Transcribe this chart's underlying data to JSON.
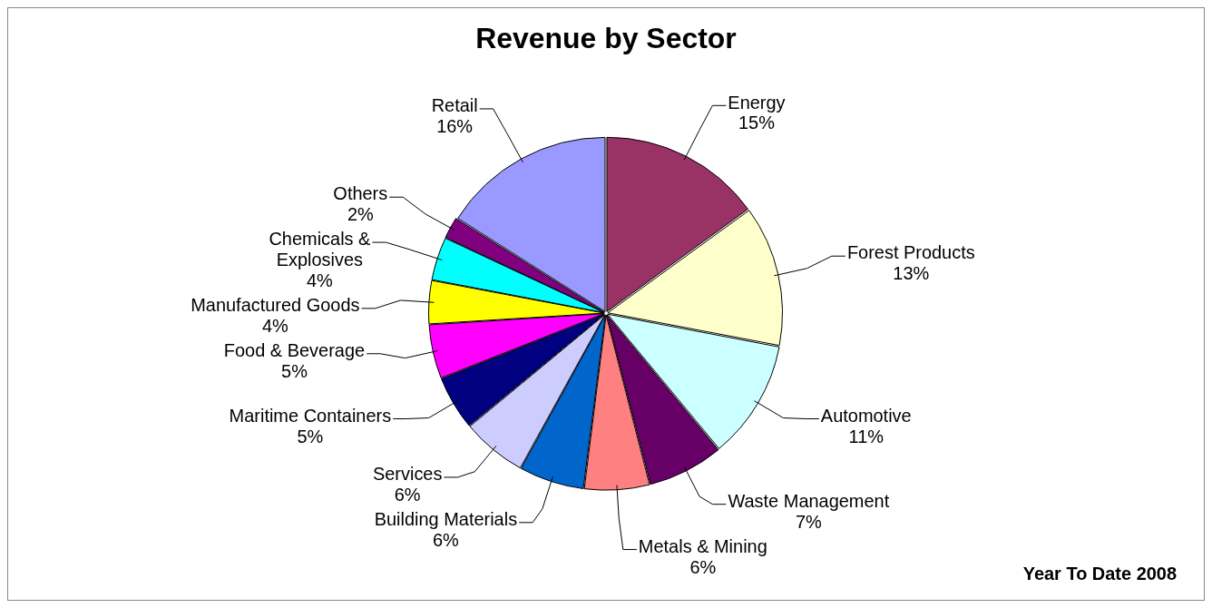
{
  "chart_data": {
    "type": "pie",
    "title": "Revenue by Sector",
    "categories": [
      "Energy",
      "Forest Products",
      "Automotive",
      "Waste Management",
      "Metals & Mining",
      "Building Materials",
      "Services",
      "Maritime Containers",
      "Food & Beverage",
      "Manufactured Goods",
      "Chemicals & Explosives",
      "Others",
      "Retail"
    ],
    "values": [
      15,
      13,
      11,
      7,
      6,
      6,
      6,
      5,
      5,
      4,
      4,
      2,
      16
    ],
    "value_labels": [
      "15%",
      "13%",
      "11%",
      "7%",
      "6%",
      "6%",
      "6%",
      "5%",
      "5%",
      "4%",
      "4%",
      "2%",
      "16%"
    ],
    "colors": [
      "#993366",
      "#ffffcc",
      "#ccffff",
      "#660066",
      "#ff8080",
      "#0066cc",
      "#ccccff",
      "#000080",
      "#ff00ff",
      "#ffff00",
      "#00ffff",
      "#800080",
      "#9999ff"
    ],
    "legend": false,
    "annotations": [
      "Year To Date 2008"
    ]
  }
}
